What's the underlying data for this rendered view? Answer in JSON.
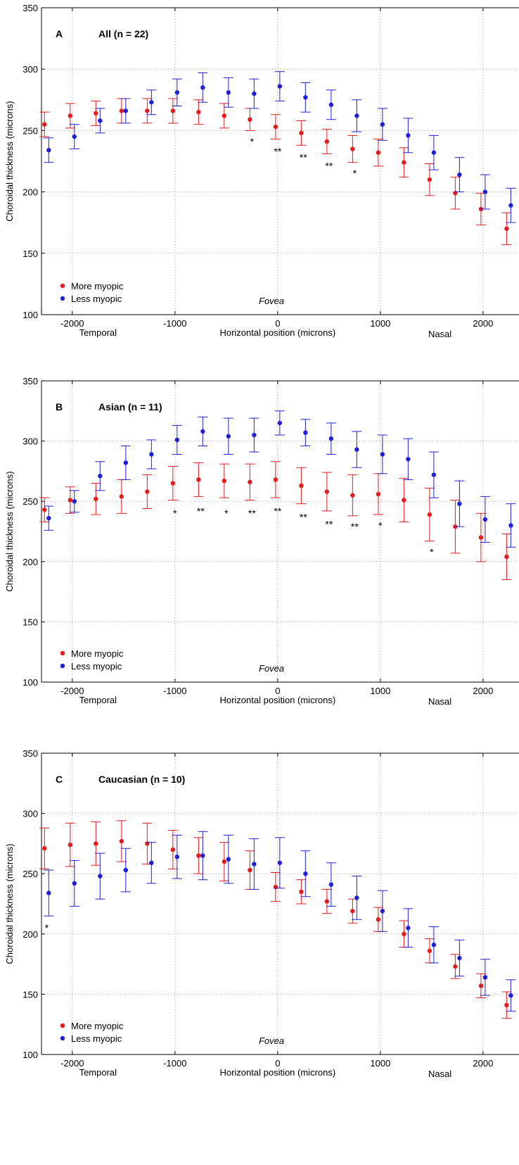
{
  "colors": {
    "more_myopic": "#e41a1c",
    "less_myopic": "#1f1fd6",
    "grid": "#9a9a9a",
    "axis": "#000000"
  },
  "chart_data": [
    {
      "type": "scatter",
      "panel": "A",
      "title": "All (n = 22)",
      "xlabel": "Horizontal position (microns)",
      "ylabel": "Choroidal thickness (microns)",
      "x_side_labels": {
        "left": "Temporal",
        "right": "Nasal"
      },
      "annotation": "Fovea",
      "xlim": [
        -2300,
        2350
      ],
      "ylim": [
        100,
        350
      ],
      "xticks": [
        -2000,
        -1000,
        0,
        1000,
        2000
      ],
      "xtick_labels": [
        "-2000",
        "-1000",
        "0",
        "1000",
        "2000"
      ],
      "yticks": [
        100,
        150,
        200,
        250,
        300,
        350
      ],
      "ytick_labels": [
        "100",
        "150",
        "200",
        "250",
        "300",
        "350"
      ],
      "grid": true,
      "legend": "bottom-left",
      "x": [
        -2250,
        -2000,
        -1750,
        -1500,
        -1250,
        -1000,
        -750,
        -500,
        -250,
        0,
        250,
        500,
        750,
        1000,
        1250,
        1500,
        1750,
        2000,
        2250
      ],
      "series": [
        {
          "name": "More myopic",
          "values": [
            255,
            262,
            264,
            266,
            266,
            266,
            265,
            262,
            259,
            253,
            248,
            241,
            235,
            232,
            224,
            210,
            199,
            186,
            170
          ],
          "err": [
            10,
            10,
            10,
            10,
            10,
            10,
            10,
            10,
            9,
            10,
            10,
            10,
            11,
            11,
            12,
            13,
            13,
            13,
            13
          ]
        },
        {
          "name": "Less myopic",
          "values": [
            234,
            245,
            258,
            266,
            273,
            281,
            285,
            281,
            280,
            286,
            277,
            271,
            262,
            255,
            246,
            232,
            214,
            200,
            189
          ],
          "err": [
            10,
            10,
            10,
            10,
            10,
            11,
            12,
            12,
            12,
            12,
            12,
            12,
            13,
            13,
            14,
            14,
            14,
            14,
            14
          ]
        }
      ],
      "significance": [
        {
          "x": -250,
          "y": 244,
          "label": "*"
        },
        {
          "x": 0,
          "y": 236,
          "label": "**"
        },
        {
          "x": 250,
          "y": 231,
          "label": "**"
        },
        {
          "x": 500,
          "y": 224,
          "label": "**"
        },
        {
          "x": 750,
          "y": 218,
          "label": "*"
        }
      ]
    },
    {
      "type": "scatter",
      "panel": "B",
      "title": "Asian (n = 11)",
      "xlabel": "Horizontal position (microns)",
      "ylabel": "Choroidal thickness (microns)",
      "x_side_labels": {
        "left": "Temporal",
        "right": "Nasal"
      },
      "annotation": "Fovea",
      "xlim": [
        -2300,
        2350
      ],
      "ylim": [
        100,
        350
      ],
      "xticks": [
        -2000,
        -1000,
        0,
        1000,
        2000
      ],
      "xtick_labels": [
        "-2000",
        "-1000",
        "0",
        "1000",
        "2000"
      ],
      "yticks": [
        100,
        150,
        200,
        250,
        300,
        350
      ],
      "ytick_labels": [
        "100",
        "150",
        "200",
        "250",
        "300",
        "350"
      ],
      "grid": true,
      "legend": "bottom-left",
      "x": [
        -2250,
        -2000,
        -1750,
        -1500,
        -1250,
        -1000,
        -750,
        -500,
        -250,
        0,
        250,
        500,
        750,
        1000,
        1250,
        1500,
        1750,
        2000,
        2250
      ],
      "series": [
        {
          "name": "More myopic",
          "values": [
            243,
            251,
            252,
            254,
            258,
            265,
            268,
            267,
            266,
            268,
            263,
            258,
            255,
            256,
            251,
            239,
            229,
            220,
            204
          ],
          "err": [
            10,
            11,
            13,
            14,
            14,
            14,
            14,
            14,
            15,
            15,
            15,
            16,
            17,
            17,
            18,
            22,
            22,
            20,
            19
          ]
        },
        {
          "name": "Less myopic",
          "values": [
            236,
            250,
            271,
            282,
            289,
            301,
            308,
            304,
            305,
            315,
            307,
            302,
            293,
            289,
            285,
            272,
            248,
            235,
            230
          ],
          "err": [
            10,
            9,
            12,
            14,
            12,
            12,
            12,
            15,
            14,
            10,
            11,
            13,
            15,
            16,
            17,
            19,
            19,
            19,
            18
          ]
        }
      ],
      "significance": [
        {
          "x": -1000,
          "y": 243,
          "label": "*"
        },
        {
          "x": -750,
          "y": 245,
          "label": "**"
        },
        {
          "x": -500,
          "y": 243,
          "label": "*"
        },
        {
          "x": -250,
          "y": 243,
          "label": "**"
        },
        {
          "x": 0,
          "y": 245,
          "label": "**"
        },
        {
          "x": 250,
          "y": 240,
          "label": "**"
        },
        {
          "x": 500,
          "y": 234,
          "label": "**"
        },
        {
          "x": 750,
          "y": 232,
          "label": "**"
        },
        {
          "x": 1000,
          "y": 233,
          "label": "*"
        },
        {
          "x": 1500,
          "y": 211,
          "label": "*"
        }
      ]
    },
    {
      "type": "scatter",
      "panel": "C",
      "title": "Caucasian (n = 10)",
      "xlabel": "Horizontal position (microns)",
      "ylabel": "Choroidal thickness (microns)",
      "x_side_labels": {
        "left": "Temporal",
        "right": "Nasal"
      },
      "annotation": "Fovea",
      "xlim": [
        -2300,
        2350
      ],
      "ylim": [
        100,
        350
      ],
      "xticks": [
        -2000,
        -1000,
        0,
        1000,
        2000
      ],
      "xtick_labels": [
        "-2000",
        "-1000",
        "0",
        "1000",
        "2000"
      ],
      "yticks": [
        100,
        150,
        200,
        250,
        300,
        350
      ],
      "ytick_labels": [
        "100",
        "150",
        "200",
        "250",
        "300",
        "350"
      ],
      "grid": true,
      "legend": "bottom-left",
      "x": [
        -2250,
        -2000,
        -1750,
        -1500,
        -1250,
        -1000,
        -750,
        -500,
        -250,
        0,
        250,
        500,
        750,
        1000,
        1250,
        1500,
        1750,
        2000,
        2250
      ],
      "series": [
        {
          "name": "More myopic",
          "values": [
            271,
            274,
            275,
            277,
            275,
            270,
            265,
            260,
            253,
            239,
            235,
            227,
            219,
            212,
            200,
            186,
            173,
            157,
            141
          ],
          "err": [
            17,
            18,
            18,
            17,
            17,
            16,
            15,
            16,
            16,
            12,
            10,
            10,
            10,
            10,
            11,
            10,
            10,
            10,
            11
          ]
        },
        {
          "name": "Less myopic",
          "values": [
            234,
            242,
            248,
            253,
            259,
            264,
            265,
            262,
            258,
            259,
            250,
            241,
            230,
            219,
            205,
            191,
            180,
            164,
            149
          ],
          "err": [
            19,
            19,
            19,
            18,
            17,
            18,
            20,
            20,
            21,
            21,
            19,
            18,
            18,
            17,
            16,
            15,
            15,
            15,
            13
          ]
        }
      ],
      "significance": [
        {
          "x": -2250,
          "y": 208,
          "label": "*"
        }
      ]
    }
  ]
}
